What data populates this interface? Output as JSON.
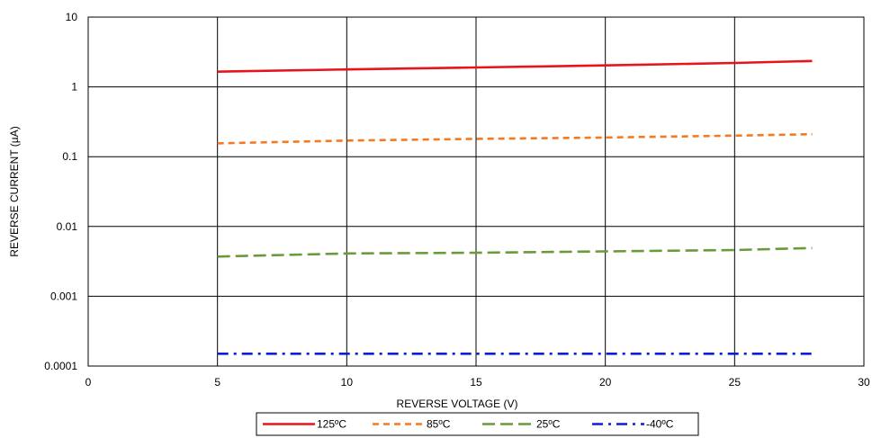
{
  "chart_data": {
    "type": "line",
    "title": "",
    "xlabel": "REVERSE VOLTAGE (V)",
    "ylabel": "REVERSE CURRENT (µA)",
    "xlim": [
      0,
      30
    ],
    "ylim": [
      0.0001,
      10
    ],
    "yscale": "log",
    "grid": true,
    "legend_position": "bottom",
    "x_ticks": [
      0,
      5,
      10,
      15,
      20,
      25,
      30
    ],
    "x_tick_labels": [
      "0",
      "5",
      "10",
      "15",
      "20",
      "25",
      "30"
    ],
    "y_ticks": [
      0.0001,
      0.001,
      0.01,
      0.1,
      1,
      10
    ],
    "y_tick_labels": [
      "0.0001",
      "0.001",
      "0.01",
      "0.1",
      "1",
      "10"
    ],
    "series": [
      {
        "name": "125ºC",
        "color": "#e8141b",
        "dash": "solid",
        "x": [
          5,
          10,
          15,
          20,
          25,
          28
        ],
        "y": [
          1.65,
          1.78,
          1.9,
          2.03,
          2.2,
          2.35
        ]
      },
      {
        "name": "85ºC",
        "color": "#f47920",
        "dash": "dash",
        "x": [
          5,
          10,
          15,
          20,
          25,
          28
        ],
        "y": [
          0.155,
          0.17,
          0.18,
          0.188,
          0.2,
          0.21
        ]
      },
      {
        "name": "25ºC",
        "color": "#6a9a3a",
        "dash": "longdash",
        "x": [
          5,
          10,
          15,
          20,
          25,
          28
        ],
        "y": [
          0.0037,
          0.0041,
          0.0042,
          0.0044,
          0.0046,
          0.0049
        ]
      },
      {
        "name": "-40ºC",
        "color": "#0a1fd6",
        "dash": "dashdot",
        "x": [
          5,
          10,
          15,
          20,
          25,
          28
        ],
        "y": [
          0.00015,
          0.00015,
          0.00015,
          0.00015,
          0.00015,
          0.00015
        ]
      }
    ]
  }
}
